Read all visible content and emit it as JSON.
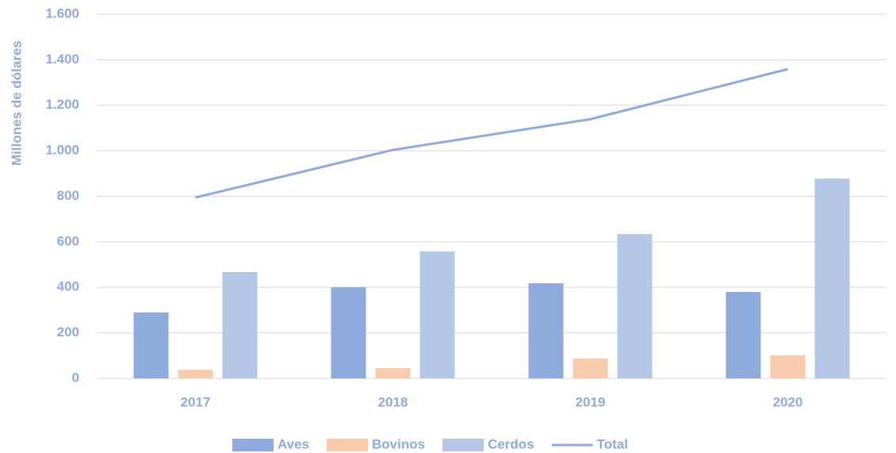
{
  "chart_data": {
    "type": "bar",
    "y_label": "Millones de dólares",
    "categories": [
      "2017",
      "2018",
      "2019",
      "2020"
    ],
    "series": [
      {
        "name": "Aves",
        "color": "#8faadc",
        "values": [
          290,
          401,
          418,
          380
        ]
      },
      {
        "name": "Bovinos",
        "color": "#f8cbad",
        "values": [
          38,
          45,
          87,
          101
        ]
      },
      {
        "name": "Cerdos",
        "color": "#b4c7e7",
        "values": [
          467,
          558,
          634,
          878
        ]
      },
      {
        "name": "Total",
        "type": "line",
        "color": "#8faadc",
        "values": [
          795,
          1004,
          1139,
          1359
        ]
      }
    ],
    "ylim": [
      0,
      1600
    ],
    "yticks": [
      0,
      200,
      400,
      600,
      800,
      {
        "value": 1000,
        "label": "1.000"
      },
      {
        "value": 1200,
        "label": "1.200"
      },
      {
        "value": 1400,
        "label": "1.400"
      },
      {
        "value": 1600,
        "label": "1.600"
      }
    ],
    "grid": true,
    "legend": "bottom"
  }
}
